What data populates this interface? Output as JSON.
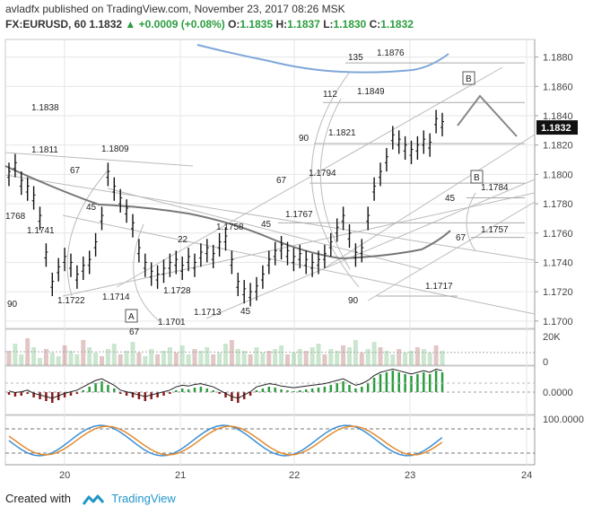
{
  "header": {
    "line1": "avladfx published on TradingView.com, November 23, 2017 08:26 MSK",
    "symbol": "FX:EURUSD, 60",
    "last": "1.1832",
    "change": "+0.0009 (+0.08%)",
    "o_label": "O:",
    "o": "1.1835",
    "h_label": "H:",
    "h": "1.1837",
    "l_label": "L:",
    "l": "1.1830",
    "c_label": "C:",
    "c": "1.1832"
  },
  "footer": {
    "created_with": "Created with",
    "brand": "TradingView"
  },
  "colors": {
    "up": "#2a9d3e",
    "down": "#8b1a1a",
    "ma": "#777777",
    "blue_ma": "#7fa7d9",
    "grid": "#e6e6e6"
  },
  "chart_data": [
    {
      "type": "candlestick",
      "panel": "price",
      "price_axis": {
        "ticks": [
          "1.1880",
          "1.1860",
          "1.1840",
          "1.1820",
          "1.1800",
          "1.1780",
          "1.1760",
          "1.1740",
          "1.1720",
          "1.1700"
        ],
        "current": "1.1832",
        "ylim": [
          1.1695,
          1.1892
        ]
      },
      "x_axis": {
        "ticks": [
          "20",
          "21",
          "22",
          "23",
          "24"
        ]
      },
      "level_labels": [
        {
          "text": "135",
          "price": 1.1876
        },
        {
          "text": "1.1876",
          "price": 1.1876
        },
        {
          "text": "112",
          "price": 1.1849
        },
        {
          "text": "1.1849",
          "price": 1.1849
        },
        {
          "text": "1.1838",
          "price": 1.1838
        },
        {
          "text": "90",
          "price": 1.1821
        },
        {
          "text": "1.1821",
          "price": 1.1821
        },
        {
          "text": "1.1811",
          "price": 1.1811
        },
        {
          "text": "1.1809",
          "price": 1.1809
        },
        {
          "text": "67",
          "price": 1.18
        },
        {
          "text": "1.1794",
          "price": 1.1794
        },
        {
          "text": "67",
          "price": 1.179
        },
        {
          "text": "1.1784",
          "price": 1.1784
        },
        {
          "text": "45",
          "price": 1.1782
        },
        {
          "text": "1768",
          "price": 1.1768
        },
        {
          "text": "45",
          "price": 1.1776
        },
        {
          "text": "1.1767",
          "price": 1.1767
        },
        {
          "text": "1.1758",
          "price": 1.1758
        },
        {
          "text": "1.1757",
          "price": 1.1757
        },
        {
          "text": "22",
          "price": 1.1754
        },
        {
          "text": "45",
          "price": 1.1758
        },
        {
          "text": "67",
          "price": 1.1752
        },
        {
          "text": "1.1741",
          "price": 1.1741
        },
        {
          "text": "1.1728",
          "price": 1.1728
        },
        {
          "text": "1.1722",
          "price": 1.1722
        },
        {
          "text": "1.1717",
          "price": 1.1717
        },
        {
          "text": "1.1714",
          "price": 1.1714
        },
        {
          "text": "67",
          "price": 1.1729
        },
        {
          "text": "90",
          "price": 1.1708
        },
        {
          "text": "45",
          "price": 1.1712
        },
        {
          "text": "1.1713",
          "price": 1.1713
        },
        {
          "text": "1.1701",
          "price": 1.1701
        },
        {
          "text": "90",
          "price": 1.1697
        }
      ],
      "pattern_labels": [
        "A",
        "B",
        "B"
      ]
    },
    {
      "type": "bar",
      "panel": "volume",
      "axis_ticks": [
        "20K",
        "0"
      ]
    },
    {
      "type": "bar",
      "panel": "oscillator",
      "axis_ticks": [
        "0.0000"
      ]
    },
    {
      "type": "line",
      "panel": "stochastic",
      "axis_ticks": [
        "100.0000"
      ]
    }
  ]
}
